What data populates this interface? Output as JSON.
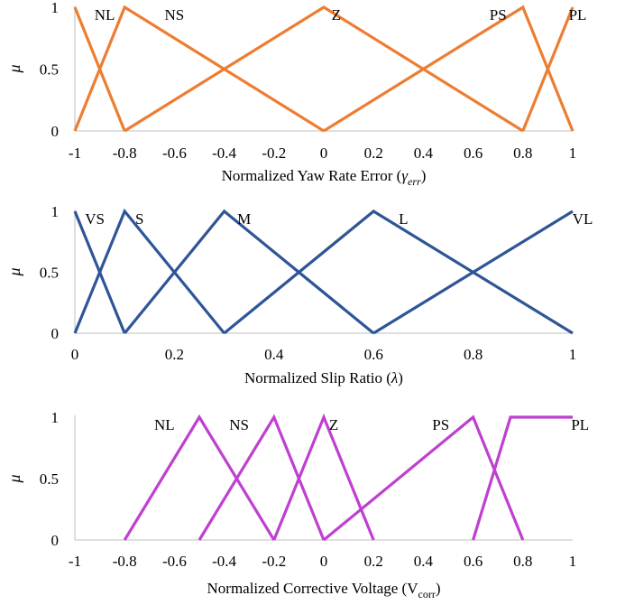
{
  "chart_data": [
    {
      "type": "line",
      "xlabel": "Normalized Yaw Rate Error (",
      "xlabel_symbol": "γ",
      "xlabel_sub": "err",
      "xlabel_close": ")",
      "ylabel": "μ",
      "xlim": [
        -1,
        1
      ],
      "ylim": [
        0,
        1
      ],
      "xticks": [
        "-1",
        "-0.8",
        "-0.6",
        "-0.4",
        "-0.2",
        "0",
        "0.2",
        "0.4",
        "0.6",
        "0.8",
        "1"
      ],
      "yticks": [
        "0",
        "0.5",
        "1"
      ],
      "color": "#ED7D31",
      "series": [
        {
          "name": "NL",
          "label_x": -0.88,
          "x": [
            -1,
            -0.8
          ],
          "y": [
            1,
            0
          ]
        },
        {
          "name": "NS",
          "label_x": -0.6,
          "x": [
            -1,
            -0.8,
            0
          ],
          "y": [
            0,
            1,
            0
          ]
        },
        {
          "name": "Z",
          "label_x": 0.05,
          "x": [
            -0.8,
            0,
            0.8
          ],
          "y": [
            0,
            1,
            0
          ]
        },
        {
          "name": "PS",
          "label_x": 0.7,
          "x": [
            0,
            0.8,
            1
          ],
          "y": [
            0,
            1,
            0
          ]
        },
        {
          "name": "PL",
          "label_x": 1.02,
          "x": [
            0.8,
            1
          ],
          "y": [
            0,
            1
          ]
        }
      ]
    },
    {
      "type": "line",
      "xlabel": "Normalized Slip Ratio (",
      "xlabel_symbol": "λ",
      "xlabel_sub": "",
      "xlabel_close": ")",
      "ylabel": "μ",
      "xlim": [
        0,
        1
      ],
      "ylim": [
        0,
        1
      ],
      "xticks": [
        "0",
        "0.2",
        "0.4",
        "0.6",
        "0.8",
        "1"
      ],
      "yticks": [
        "0",
        "0.5",
        "1"
      ],
      "color": "#2F5597",
      "series": [
        {
          "name": "VS",
          "label_x": 0.04,
          "x": [
            0,
            0.1
          ],
          "y": [
            1,
            0
          ]
        },
        {
          "name": "S",
          "label_x": 0.13,
          "x": [
            0,
            0.1,
            0.3
          ],
          "y": [
            0,
            1,
            0
          ]
        },
        {
          "name": "M",
          "label_x": 0.34,
          "x": [
            0.1,
            0.3,
            0.6
          ],
          "y": [
            0,
            1,
            0
          ]
        },
        {
          "name": "L",
          "label_x": 0.66,
          "x": [
            0.3,
            0.6,
            1
          ],
          "y": [
            0,
            1,
            0
          ]
        },
        {
          "name": "VL",
          "label_x": 1.02,
          "x": [
            0.6,
            1
          ],
          "y": [
            0,
            1
          ]
        }
      ]
    },
    {
      "type": "line",
      "xlabel": "Normalized Corrective Voltage (V",
      "xlabel_symbol": "",
      "xlabel_sub": "corr",
      "xlabel_close": ")",
      "ylabel": "μ",
      "xlim": [
        -1,
        1
      ],
      "ylim": [
        0,
        1
      ],
      "xticks": [
        "-1",
        "-0.8",
        "-0.6",
        "-0.4",
        "-0.2",
        "0",
        "0.2",
        "0.4",
        "0.6",
        "0.8",
        "1"
      ],
      "yticks": [
        "0",
        "0.5",
        "1"
      ],
      "color": "#BF40D0",
      "series": [
        {
          "name": "NL",
          "label_x": -0.64,
          "x": [
            -0.8,
            -0.5,
            -0.2
          ],
          "y": [
            0,
            1,
            0
          ]
        },
        {
          "name": "NS",
          "label_x": -0.34,
          "x": [
            -0.5,
            -0.2,
            0
          ],
          "y": [
            0,
            1,
            0
          ]
        },
        {
          "name": "Z",
          "label_x": 0.04,
          "x": [
            -0.2,
            0,
            0.2
          ],
          "y": [
            0,
            1,
            0
          ]
        },
        {
          "name": "PS",
          "label_x": 0.47,
          "x": [
            0,
            0.6,
            0.8
          ],
          "y": [
            0,
            1,
            0
          ]
        },
        {
          "name": "PL",
          "label_x": 1.03,
          "x": [
            0.6,
            0.75,
            1
          ],
          "y": [
            0,
            1,
            1
          ]
        }
      ]
    }
  ]
}
